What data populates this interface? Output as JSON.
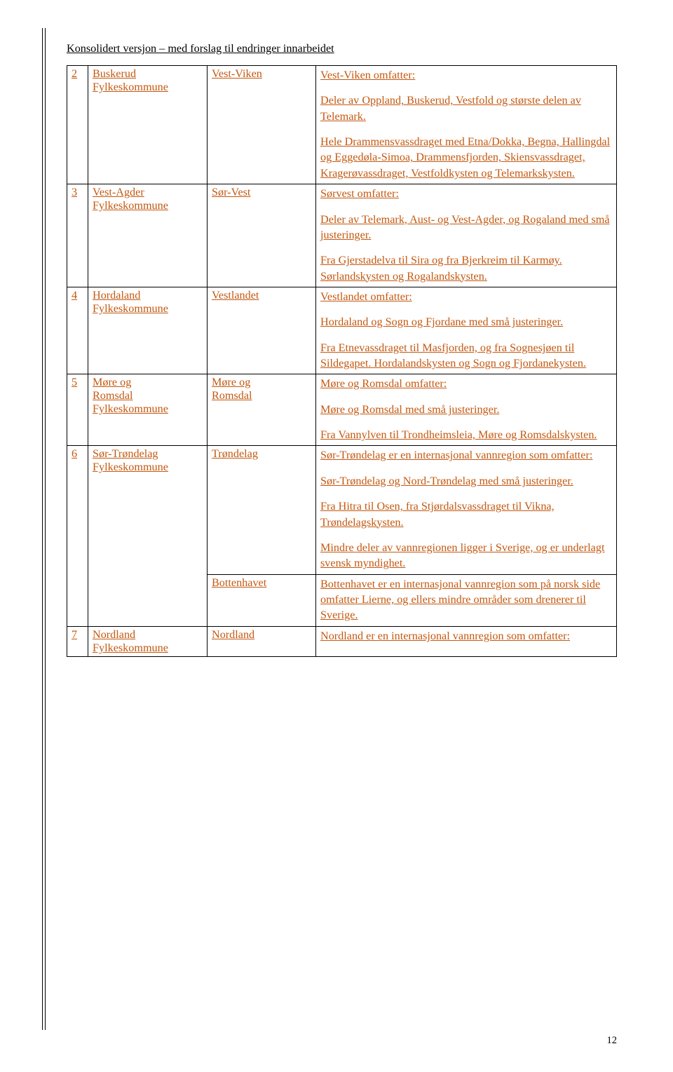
{
  "header": {
    "title": "Konsolidert versjon – med forslag til endringer innarbeidet"
  },
  "colors": {
    "link": "#C45911",
    "border": "#000000",
    "background": "#ffffff"
  },
  "rows": [
    {
      "num": "2",
      "myndighet_lines": [
        "Buskerud",
        "Fylkeskommune"
      ],
      "region": "Vest-Viken",
      "paragraphs": [
        "Vest-Viken omfatter:",
        "Deler av Oppland, Buskerud, Vestfold og største delen av Telemark.",
        "Hele Drammensvassdraget med Etna/Dokka, Begna, Hallingdal og Eggedøla-Simoa, Drammensfjorden, Skiensvassdraget, Kragerøvassdraget, Vestfoldkysten og Telemarkskysten."
      ]
    },
    {
      "num": "3",
      "myndighet_lines": [
        "Vest-Agder",
        "Fylkeskommune"
      ],
      "region": "Sør-Vest",
      "paragraphs": [
        "Sørvest omfatter:",
        "Deler av Telemark, Aust- og Vest-Agder, og Rogaland med små justeringer.",
        "Fra Gjerstadelva til Sira og fra Bjerkreim til Karmøy. Sørlandskysten og Rogalandskysten."
      ]
    },
    {
      "num": "4",
      "myndighet_lines": [
        "Hordaland",
        "Fylkeskommune"
      ],
      "region": "Vestlandet",
      "paragraphs": [
        "Vestlandet omfatter:",
        "Hordaland og Sogn og Fjordane med små justeringer.",
        "Fra Etnevassdraget til Masfjorden, og fra Sognesjøen til Sildegapet. Hordalandskysten og Sogn og Fjordanekysten."
      ]
    },
    {
      "num": "5",
      "myndighet_lines": [
        "Møre og",
        "Romsdal",
        "Fylkeskommune"
      ],
      "region_lines": [
        "Møre og",
        "Romsdal"
      ],
      "paragraphs": [
        "Møre og Romsdal omfatter:",
        "Møre og Romsdal med små justeringer.",
        "Fra Vannylven til Trondheimsleia, Møre og Romsdalskysten."
      ]
    },
    {
      "num": "6",
      "rowspan": 2,
      "myndighet_lines": [
        "Sør-Trøndelag",
        "Fylkeskommune"
      ],
      "region": "Trøndelag",
      "paragraphs": [
        "Sør-Trøndelag er en internasjonal vannregion som omfatter:",
        "Sør-Trøndelag og Nord-Trøndelag med små justeringer.",
        "Fra Hitra til Osen, fra Stjørdalsvassdraget til Vikna, Trøndelagskysten.",
        "Mindre deler av vannregionen ligger i Sverige, og er underlagt svensk myndighet."
      ]
    },
    {
      "subrow": true,
      "region": "Bottenhavet",
      "paragraphs": [
        "Bottenhavet er en internasjonal vannregion som på norsk side omfatter Lierne, og ellers mindre områder som drenerer til Sverige."
      ]
    },
    {
      "num": "7",
      "myndighet_lines": [
        "Nordland",
        "Fylkeskommune"
      ],
      "region": "Nordland",
      "paragraphs": [
        "Nordland er en internasjonal vannregion som omfatter:"
      ]
    }
  ],
  "page_number": "12"
}
